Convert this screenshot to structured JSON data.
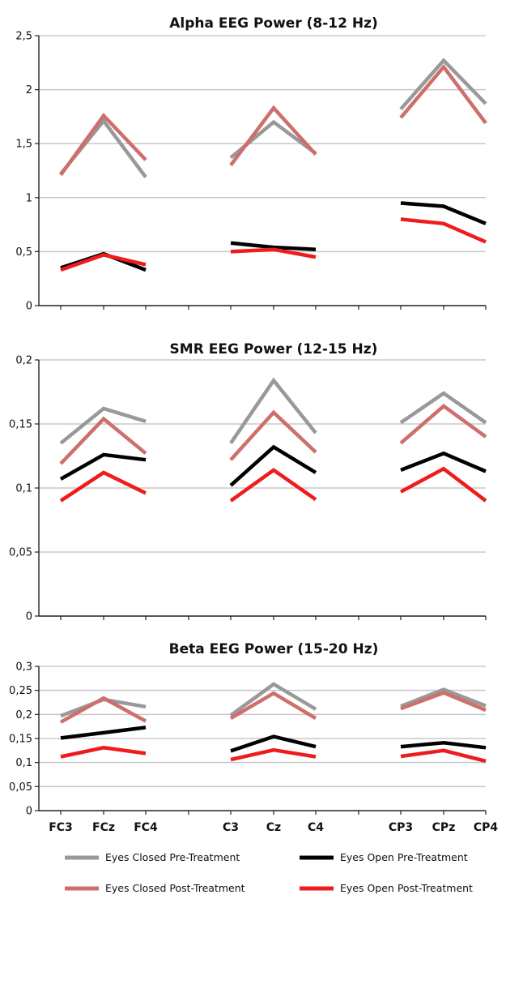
{
  "chart_data": [
    {
      "type": "line",
      "title": "Alpha EEG Power (8-12 Hz)",
      "xlabel": "",
      "ylabel": "",
      "ylim": [
        0,
        2.5
      ],
      "yticks": [
        "0",
        "0,5",
        "1",
        "1,5",
        "2",
        "2,5"
      ],
      "grid": true,
      "groups": [
        [
          "FC3",
          "FCz",
          "FC4"
        ],
        [
          "C3",
          "Cz",
          "C4"
        ],
        [
          "CP3",
          "CPz",
          "CP4"
        ]
      ],
      "series": [
        {
          "name": "Eyes Closed Pre-Treatment",
          "color": "#999999",
          "values": [
            [
              1.22,
              1.71,
              1.19
            ],
            [
              1.37,
              1.7,
              1.41
            ],
            [
              1.82,
              2.27,
              1.87
            ]
          ]
        },
        {
          "name": "Eyes Closed Post-Treatment",
          "color": "#cd6f6a",
          "values": [
            [
              1.21,
              1.76,
              1.35
            ],
            [
              1.3,
              1.83,
              1.4
            ],
            [
              1.74,
              2.21,
              1.69
            ]
          ]
        },
        {
          "name": "Eyes Open Pre-Treatment",
          "color": "#000000",
          "values": [
            [
              0.35,
              0.48,
              0.33
            ],
            [
              0.58,
              0.54,
              0.52
            ],
            [
              0.95,
              0.92,
              0.76
            ]
          ]
        },
        {
          "name": "Eyes Open Post-Treatment",
          "color": "#ee1c1c",
          "values": [
            [
              0.33,
              0.47,
              0.38
            ],
            [
              0.5,
              0.52,
              0.45
            ],
            [
              0.8,
              0.76,
              0.59
            ]
          ]
        }
      ]
    },
    {
      "type": "line",
      "title": "SMR EEG Power (12-15 Hz)",
      "xlabel": "",
      "ylabel": "",
      "ylim": [
        0,
        0.2
      ],
      "yticks": [
        "0",
        "0,05",
        "0,1",
        "0,15",
        "0,2"
      ],
      "grid": true,
      "groups": [
        [
          "FC3",
          "FCz",
          "FC4"
        ],
        [
          "C3",
          "Cz",
          "C4"
        ],
        [
          "CP3",
          "CPz",
          "CP4"
        ]
      ],
      "series": [
        {
          "name": "Eyes Closed Pre-Treatment",
          "color": "#999999",
          "values": [
            [
              0.135,
              0.162,
              0.152
            ],
            [
              0.135,
              0.184,
              0.143
            ],
            [
              0.151,
              0.174,
              0.151
            ]
          ]
        },
        {
          "name": "Eyes Closed Post-Treatment",
          "color": "#cd6f6a",
          "values": [
            [
              0.119,
              0.154,
              0.127
            ],
            [
              0.122,
              0.159,
              0.128
            ],
            [
              0.135,
              0.164,
              0.14
            ]
          ]
        },
        {
          "name": "Eyes Open Pre-Treatment",
          "color": "#000000",
          "values": [
            [
              0.107,
              0.126,
              0.122
            ],
            [
              0.102,
              0.132,
              0.112
            ],
            [
              0.114,
              0.127,
              0.113
            ]
          ]
        },
        {
          "name": "Eyes Open Post-Treatment",
          "color": "#ee1c1c",
          "values": [
            [
              0.09,
              0.112,
              0.096
            ],
            [
              0.09,
              0.114,
              0.091
            ],
            [
              0.097,
              0.115,
              0.09
            ]
          ]
        }
      ]
    },
    {
      "type": "line",
      "title": "Beta EEG Power (15-20 Hz)",
      "xlabel": "",
      "ylabel": "",
      "ylim": [
        0,
        0.3
      ],
      "yticks": [
        "0",
        "0,05",
        "0,1",
        "0,15",
        "0,2",
        "0,25",
        "0,3"
      ],
      "grid": true,
      "groups": [
        [
          "FC3",
          "FCz",
          "FC4"
        ],
        [
          "C3",
          "Cz",
          "C4"
        ],
        [
          "CP3",
          "CPz",
          "CP4"
        ]
      ],
      "series": [
        {
          "name": "Eyes Closed Pre-Treatment",
          "color": "#999999",
          "values": [
            [
              0.197,
              0.231,
              0.216
            ],
            [
              0.198,
              0.263,
              0.211
            ],
            [
              0.217,
              0.252,
              0.218
            ]
          ]
        },
        {
          "name": "Eyes Closed Post-Treatment",
          "color": "#cd6f6a",
          "values": [
            [
              0.184,
              0.234,
              0.186
            ],
            [
              0.192,
              0.244,
              0.192
            ],
            [
              0.212,
              0.245,
              0.209
            ]
          ]
        },
        {
          "name": "Eyes Open Pre-Treatment",
          "color": "#000000",
          "values": [
            [
              0.151,
              0.162,
              0.173
            ],
            [
              0.124,
              0.154,
              0.133
            ],
            [
              0.133,
              0.141,
              0.131
            ]
          ]
        },
        {
          "name": "Eyes Open Post-Treatment",
          "color": "#ee1c1c",
          "values": [
            [
              0.112,
              0.131,
              0.119
            ],
            [
              0.106,
              0.126,
              0.112
            ],
            [
              0.113,
              0.125,
              0.103
            ]
          ]
        }
      ]
    }
  ],
  "x_axis_labels": [
    "FC3",
    "FCz",
    "FC4",
    "",
    "C3",
    "Cz",
    "C4",
    "",
    "CP3",
    "CPz",
    "CP4"
  ],
  "legend": {
    "placement": "bottom",
    "items": [
      {
        "label": "Eyes Closed Pre-Treatment",
        "color": "#999999"
      },
      {
        "label": "Eyes Open Pre-Treatment",
        "color": "#000000"
      },
      {
        "label": "Eyes Closed Post-Treatment",
        "color": "#cd6f6a"
      },
      {
        "label": "Eyes Open Post-Treatment",
        "color": "#ee1c1c"
      }
    ]
  }
}
